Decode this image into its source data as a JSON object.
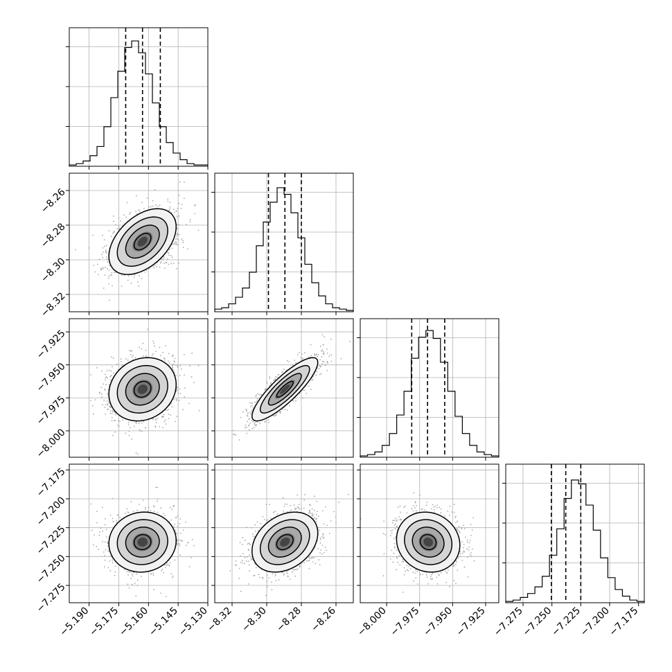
{
  "chart_data": {
    "type": "corner",
    "grid": true,
    "parameters": [
      {
        "index": 0,
        "ticks": [
          -5.19,
          -5.175,
          -5.16,
          -5.145,
          -5.13
        ],
        "tick_labels": [
          "−5.190",
          "−5.175",
          "−5.160",
          "−5.145",
          "−5.130"
        ],
        "range": [
          -5.2,
          -5.13
        ],
        "mean": -5.163,
        "std": 0.0085,
        "quantiles": [
          -5.1715,
          -5.163,
          -5.154
        ],
        "hist_counts": [
          1,
          2,
          4,
          8,
          15,
          30,
          52,
          72,
          90,
          95,
          86,
          70,
          48,
          30,
          18,
          10,
          5,
          2,
          1,
          1
        ],
        "hist_max": 100
      },
      {
        "index": 1,
        "ticks": [
          -8.32,
          -8.3,
          -8.28,
          -8.26
        ],
        "tick_labels": [
          "−8.32",
          "−8.30",
          "−8.28",
          "−8.26"
        ],
        "range": [
          -8.33,
          -8.25
        ],
        "mean": -8.2895,
        "std": 0.0095,
        "quantiles": [
          -8.299,
          -8.2895,
          -8.28
        ],
        "hist_counts": [
          2,
          3,
          6,
          11,
          18,
          30,
          50,
          68,
          83,
          94,
          89,
          75,
          56,
          36,
          22,
          12,
          6,
          3,
          2,
          1
        ],
        "hist_max": 100
      },
      {
        "index": 2,
        "ticks": [
          -8.0,
          -7.975,
          -7.95,
          -7.925
        ],
        "tick_labels": [
          "−8.000",
          "−7.975",
          "−7.950",
          "−7.925"
        ],
        "range": [
          -8.02,
          -7.915
        ],
        "mean": -7.9685,
        "std": 0.012,
        "quantiles": [
          -7.981,
          -7.969,
          -7.956
        ],
        "hist_counts": [
          1,
          2,
          4,
          9,
          18,
          32,
          50,
          75,
          91,
          96,
          90,
          72,
          50,
          31,
          18,
          9,
          4,
          2,
          1
        ],
        "hist_max": 100
      },
      {
        "index": 3,
        "ticks": [
          -7.275,
          -7.25,
          -7.225,
          -7.2,
          -7.175
        ],
        "tick_labels": [
          "−7.275",
          "−7.250",
          "−7.225",
          "−7.200",
          "−7.175"
        ],
        "range": [
          -7.29,
          -7.17
        ],
        "mean": -7.2375,
        "std": 0.013,
        "quantiles": [
          -7.2505,
          -7.238,
          -7.225
        ],
        "hist_counts": [
          1,
          2,
          4,
          7,
          12,
          20,
          36,
          56,
          79,
          93,
          90,
          74,
          55,
          34,
          19,
          10,
          5,
          2,
          1
        ],
        "hist_max": 100
      }
    ],
    "correlations": {
      "1,0": 0.45,
      "2,0": 0.15,
      "2,1": 0.85,
      "3,0": 0.05,
      "3,1": 0.3,
      "3,2": -0.1
    },
    "contour_levels_sigma": [
      0.5,
      1.0,
      1.5,
      2.0
    ],
    "colors": {
      "ink": "#000000",
      "scatter": "#a8a8a8",
      "grid": "#b0b0b0"
    }
  }
}
